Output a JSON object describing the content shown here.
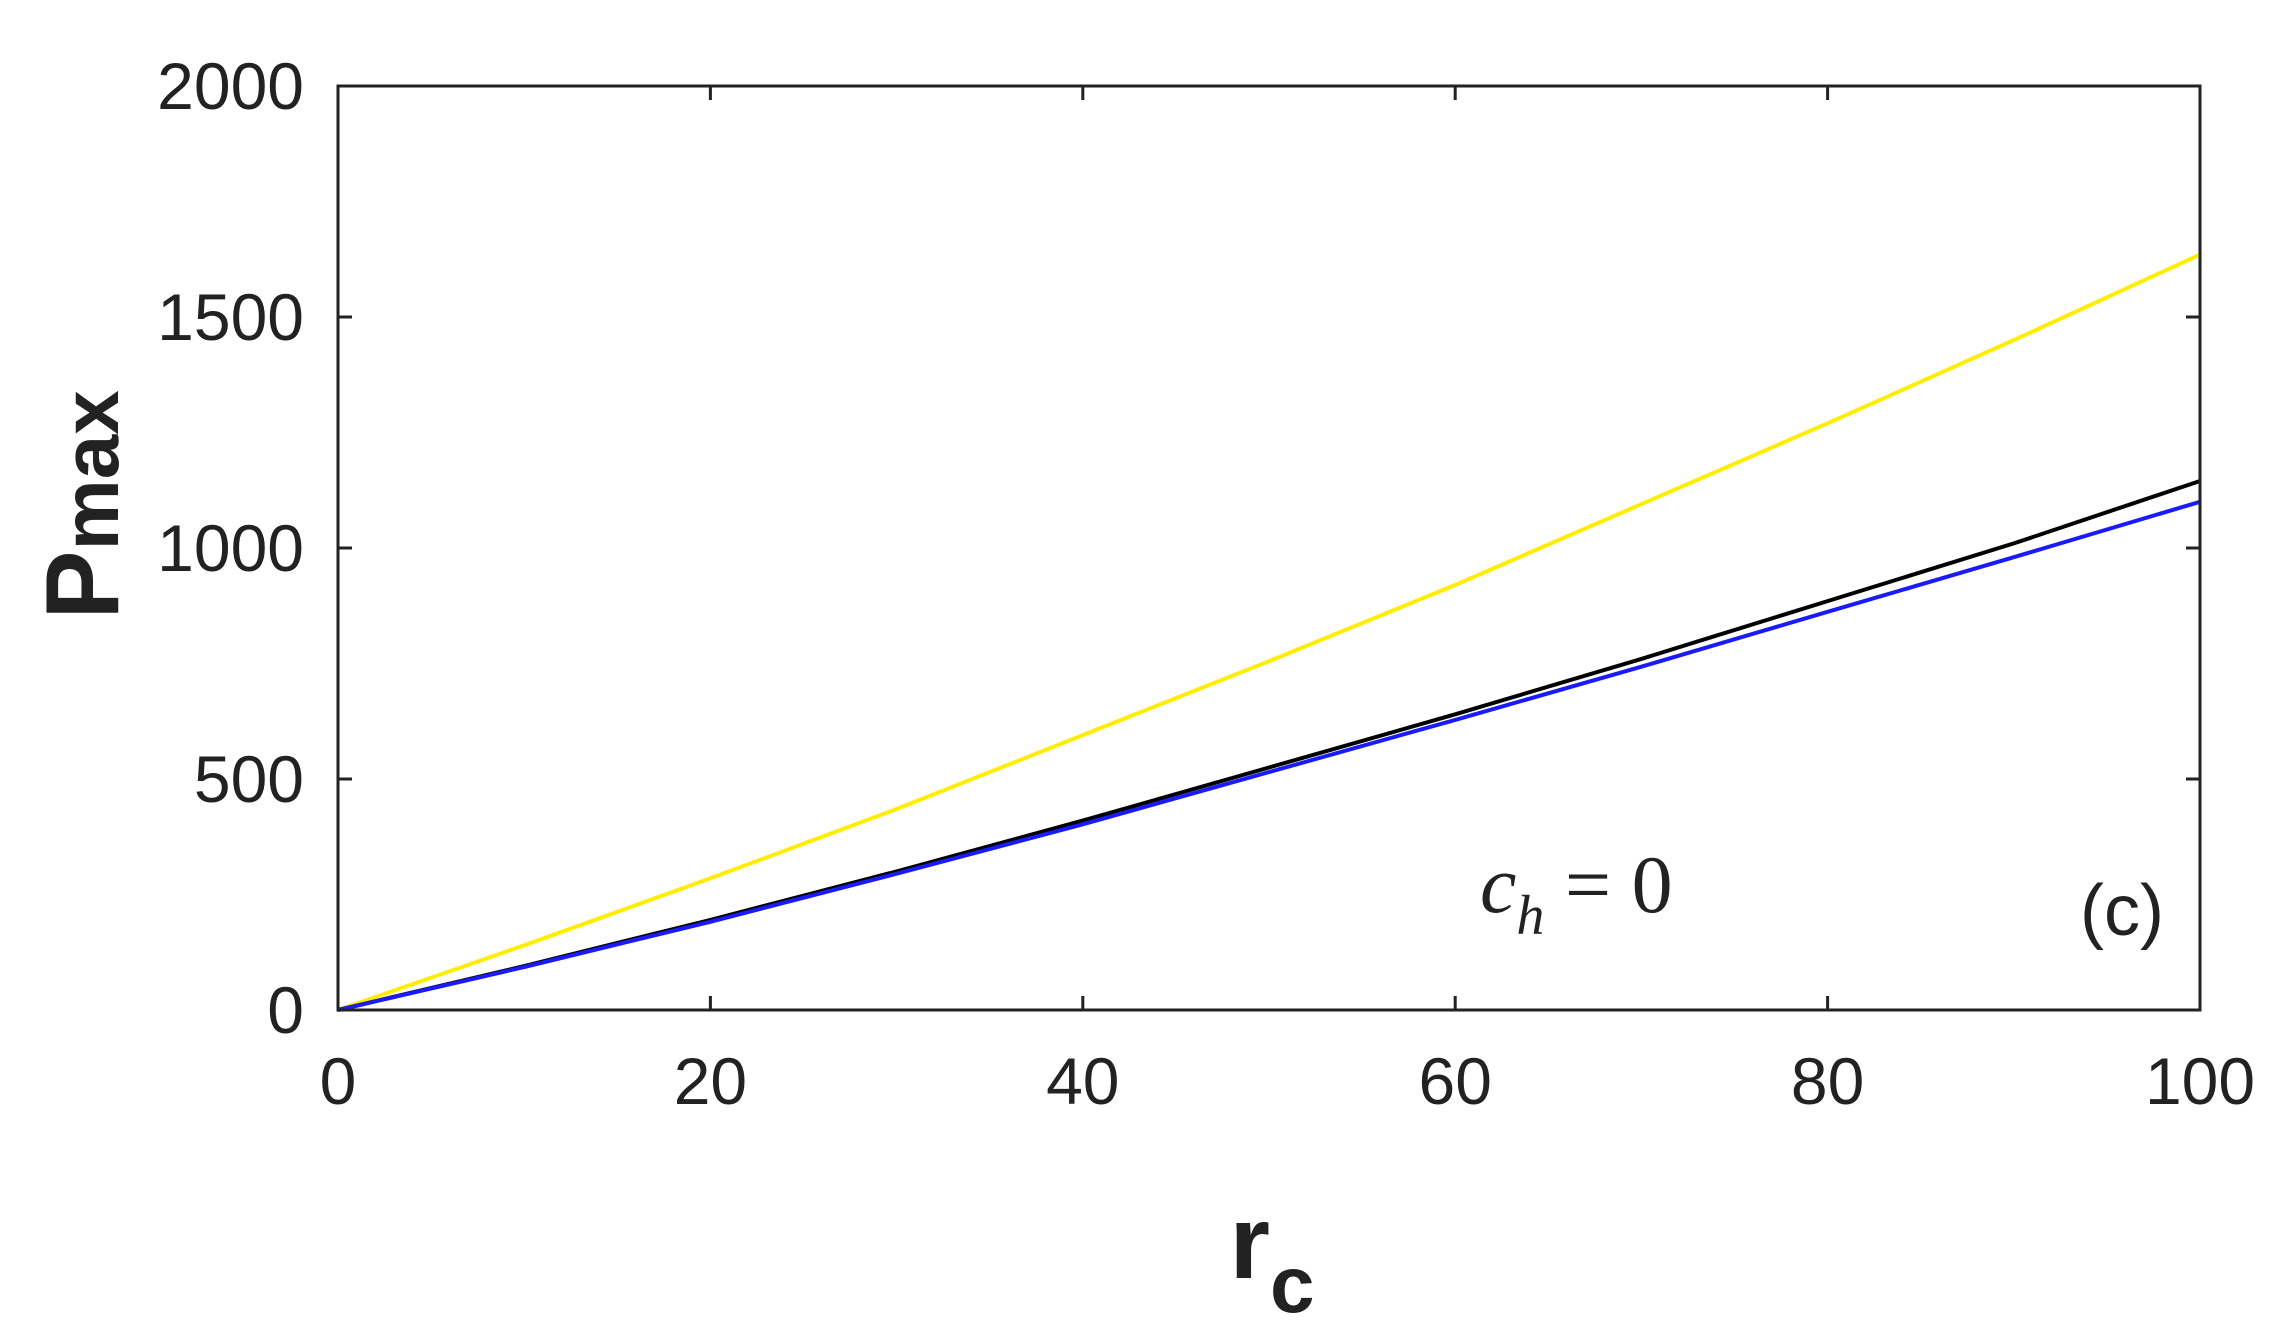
{
  "chart_data": {
    "type": "line",
    "xlabel": "r",
    "xlabel_sub": "c",
    "ylabel": "P",
    "ylabel_sub": "max",
    "xlim": [
      0,
      100
    ],
    "ylim": [
      0,
      2000
    ],
    "xticks": [
      0,
      20,
      40,
      60,
      80,
      100
    ],
    "yticks": [
      0,
      500,
      1000,
      1500,
      2000
    ],
    "grid": false,
    "annotation_math": {
      "var": "c",
      "sub": "h",
      "rest": " = 0"
    },
    "panel_label": "(c)",
    "x": [
      0,
      10,
      20,
      30,
      40,
      50,
      60,
      70,
      80,
      90,
      100
    ],
    "series": [
      {
        "color": "#ffee00",
        "values": [
          0,
          140,
          285,
          435,
          595,
          755,
          920,
          1095,
          1270,
          1450,
          1635
        ]
      },
      {
        "color": "#000000",
        "values": [
          0,
          95,
          195,
          300,
          410,
          525,
          640,
          760,
          885,
          1010,
          1145
        ]
      },
      {
        "color": "#1a1aff",
        "values": [
          0,
          93,
          191,
          295,
          402,
          515,
          628,
          743,
          862,
          980,
          1100
        ]
      }
    ]
  }
}
